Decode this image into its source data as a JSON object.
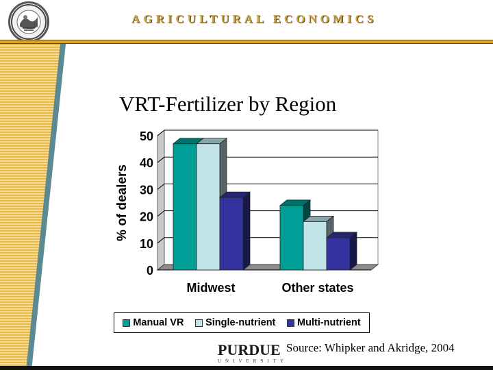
{
  "header": {
    "title": "AGRICULTURAL ECONOMICS"
  },
  "slide": {
    "title": "VRT-Fertilizer by Region",
    "source": "Source:  Whipker and Akridge, 2004"
  },
  "logo": {
    "wordmark": "PURDUE",
    "subtitle": "UNIVERSITY",
    "seal_text": "AGRICULTURAL ECONOMICS"
  },
  "colors": {
    "accent_gold": "#e0a41c",
    "series_teal": "#009e96",
    "series_light": "#bfe3e6",
    "series_blue": "#3333a0"
  },
  "chart_data": {
    "type": "bar",
    "title": "",
    "xlabel": "",
    "ylabel": "% of dealers",
    "ylim": [
      0,
      50
    ],
    "yticks": [
      "0",
      "10",
      "20",
      "30",
      "40",
      "50"
    ],
    "grid": true,
    "legend_position": "bottom",
    "categories": [
      "Midwest",
      "Other states"
    ],
    "series": [
      {
        "name": "Manual VR",
        "values": [
          47,
          24
        ],
        "color": "#009e96"
      },
      {
        "name": "Single-nutrient",
        "values": [
          47,
          18
        ],
        "color": "#bfe3e6"
      },
      {
        "name": "Multi-nutrient",
        "values": [
          27,
          12
        ],
        "color": "#3333a0"
      }
    ]
  }
}
